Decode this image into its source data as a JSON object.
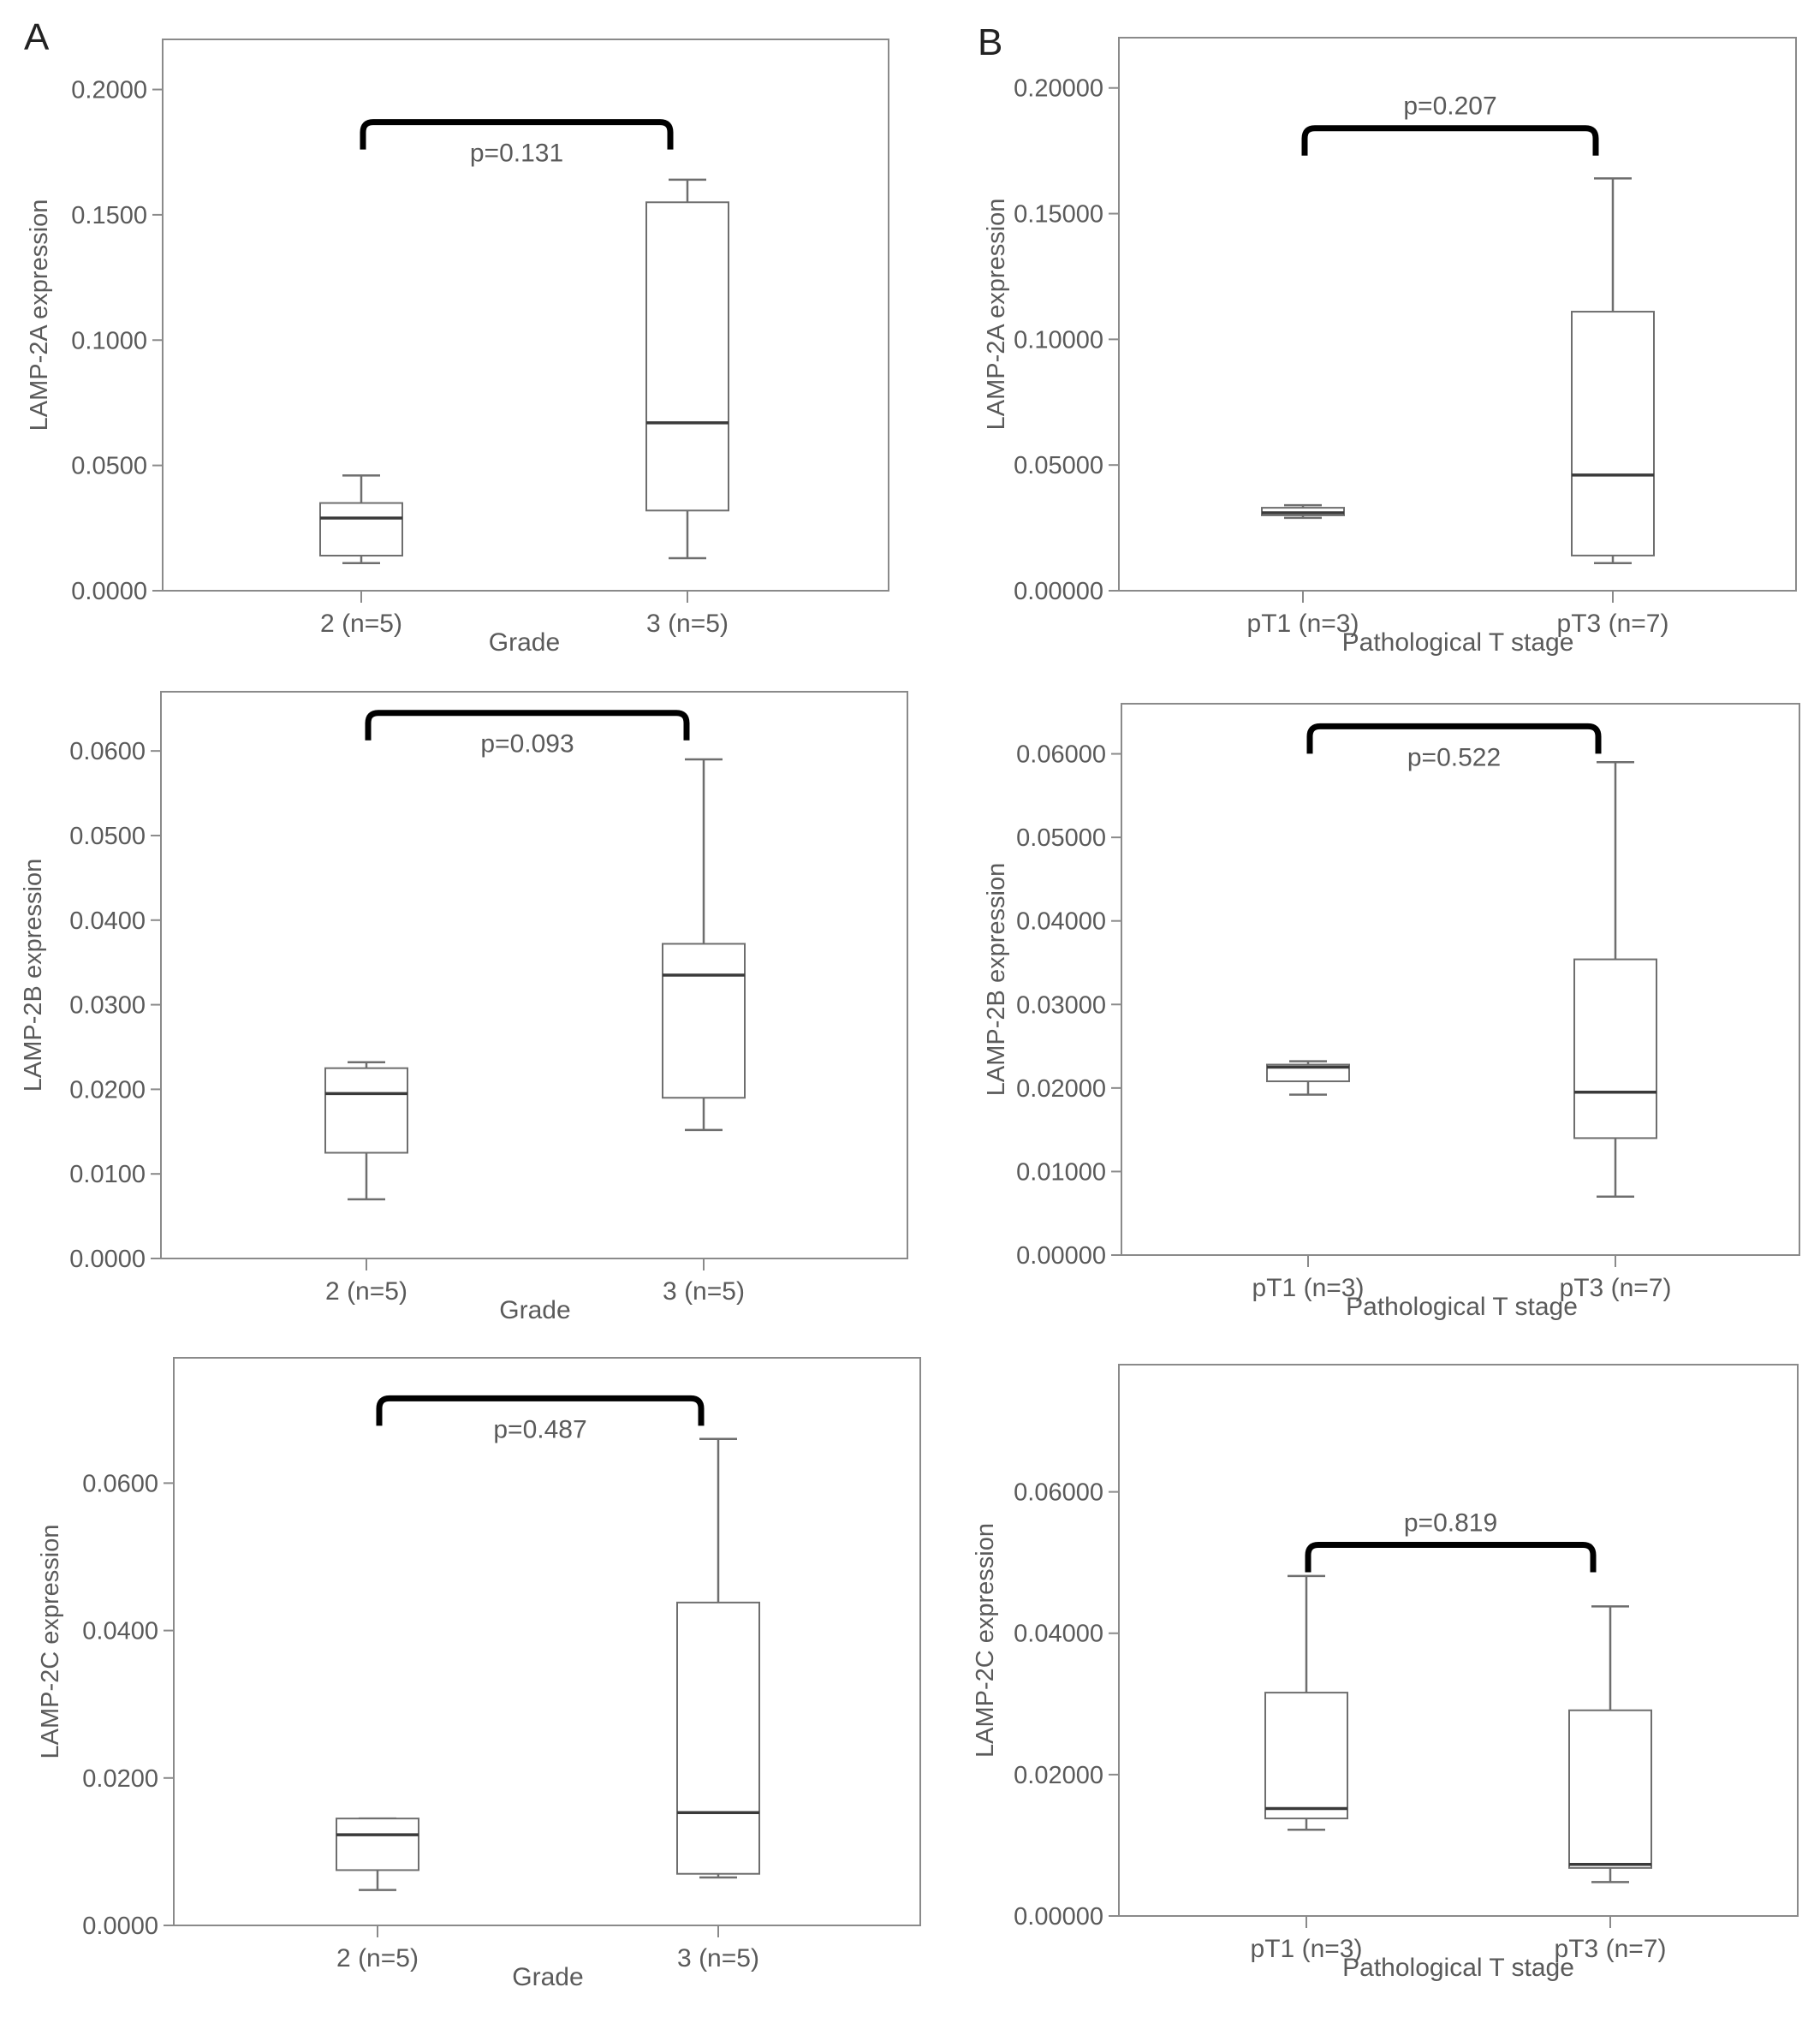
{
  "panels": [
    {
      "letter": "A"
    },
    {
      "letter": "B"
    }
  ],
  "chart_data": [
    {
      "type": "box",
      "ylabel": "LAMP-2A expression",
      "xlabel": "Grade",
      "yticks": [
        "0.0000",
        "0.0500",
        "0.1000",
        "0.1500",
        "0.2000"
      ],
      "ylim": [
        0,
        0.22
      ],
      "categories": [
        "2 (n=5)",
        "3 (n=5)"
      ],
      "boxes": [
        {
          "min": 0.011,
          "q1": 0.014,
          "median": 0.029,
          "q3": 0.035,
          "max": 0.046
        },
        {
          "min": 0.013,
          "q1": 0.032,
          "median": 0.067,
          "q3": 0.155,
          "max": 0.164
        }
      ],
      "pvalue": "p=0.131",
      "pvalue_label_pos": "below",
      "bracket_y": 0.187
    },
    {
      "type": "box",
      "ylabel": "LAMP-2A expression",
      "xlabel": "Pathological T stage",
      "yticks": [
        "0.00000",
        "0.05000",
        "0.10000",
        "0.15000",
        "0.20000"
      ],
      "ylim": [
        0,
        0.22
      ],
      "categories": [
        "pT1 (n=3)",
        "pT3 (n=7)"
      ],
      "boxes": [
        {
          "min": 0.029,
          "q1": 0.03,
          "median": 0.031,
          "q3": 0.033,
          "max": 0.034
        },
        {
          "min": 0.011,
          "q1": 0.014,
          "median": 0.046,
          "q3": 0.111,
          "max": 0.164
        }
      ],
      "pvalue": "p=0.207",
      "pvalue_label_pos": "above",
      "bracket_y": 0.184
    },
    {
      "type": "box",
      "ylabel": "LAMP-2B expression",
      "xlabel": "Grade",
      "yticks": [
        "0.0000",
        "0.0100",
        "0.0200",
        "0.0300",
        "0.0400",
        "0.0500",
        "0.0600"
      ],
      "ylim": [
        0,
        0.067
      ],
      "categories": [
        "2 (n=5)",
        "3 (n=5)"
      ],
      "boxes": [
        {
          "min": 0.007,
          "q1": 0.0125,
          "median": 0.0195,
          "q3": 0.0225,
          "max": 0.0232
        },
        {
          "min": 0.0152,
          "q1": 0.019,
          "median": 0.0335,
          "q3": 0.0372,
          "max": 0.059
        }
      ],
      "pvalue": "p=0.093",
      "pvalue_label_pos": "below",
      "bracket_y": 0.0645
    },
    {
      "type": "box",
      "ylabel": "LAMP-2B expression",
      "xlabel": "Pathological T stage",
      "yticks": [
        "0.00000",
        "0.01000",
        "0.02000",
        "0.03000",
        "0.04000",
        "0.05000",
        "0.06000"
      ],
      "ylim": [
        0,
        0.066
      ],
      "categories": [
        "pT1 (n=3)",
        "pT3 (n=7)"
      ],
      "boxes": [
        {
          "min": 0.0192,
          "q1": 0.0208,
          "median": 0.0225,
          "q3": 0.0228,
          "max": 0.0232
        },
        {
          "min": 0.007,
          "q1": 0.014,
          "median": 0.0195,
          "q3": 0.0354,
          "max": 0.059
        }
      ],
      "pvalue": "p=0.522",
      "pvalue_label_pos": "below",
      "bracket_y": 0.0633
    },
    {
      "type": "box",
      "ylabel": "LAMP-2C expression",
      "xlabel": "Grade",
      "yticks": [
        "0.0000",
        "0.0200",
        "0.0400",
        "0.0600"
      ],
      "ylim": [
        0,
        0.077
      ],
      "categories": [
        "2 (n=5)",
        "3 (n=5)"
      ],
      "boxes": [
        {
          "min": 0.0048,
          "q1": 0.0075,
          "median": 0.0123,
          "q3": 0.0145,
          "max": 0.0145
        },
        {
          "min": 0.0065,
          "q1": 0.007,
          "median": 0.0153,
          "q3": 0.0438,
          "max": 0.066
        }
      ],
      "pvalue": "p=0.487",
      "pvalue_label_pos": "below",
      "bracket_y": 0.0715
    },
    {
      "type": "box",
      "ylabel": "LAMP-2C expression",
      "xlabel": "Pathological T stage",
      "yticks": [
        "0.00000",
        "0.02000",
        "0.04000",
        "0.06000"
      ],
      "ylim": [
        0,
        0.078
      ],
      "categories": [
        "pT1 (n=3)",
        "pT3 (n=7)"
      ],
      "boxes": [
        {
          "min": 0.0122,
          "q1": 0.0138,
          "median": 0.0152,
          "q3": 0.0316,
          "max": 0.0481
        },
        {
          "min": 0.0048,
          "q1": 0.0068,
          "median": 0.0073,
          "q3": 0.0291,
          "max": 0.0438
        }
      ],
      "pvalue": "p=0.819",
      "pvalue_label_pos": "above",
      "bracket_y": 0.0525
    }
  ]
}
